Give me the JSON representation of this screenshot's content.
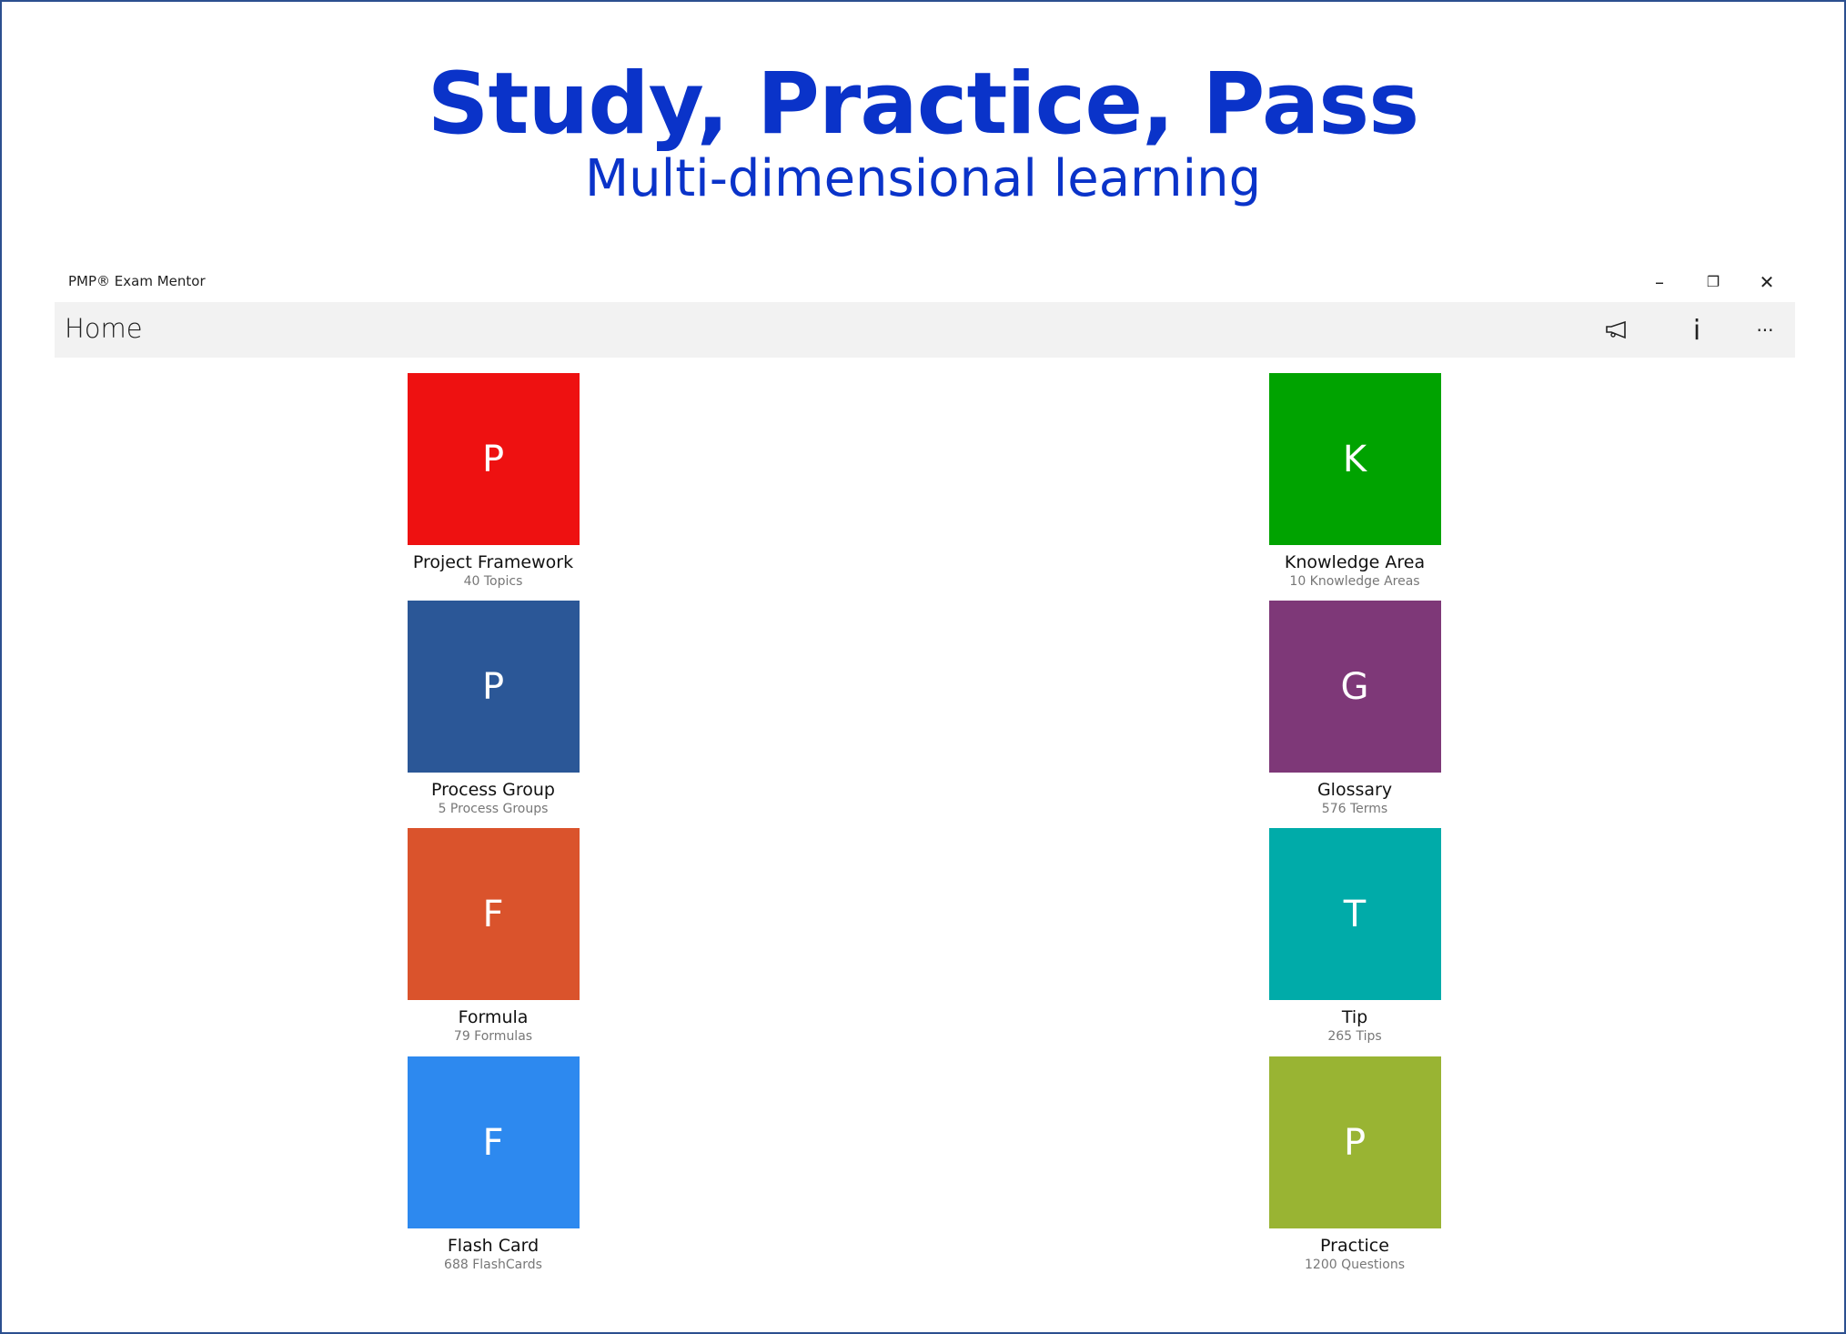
{
  "hero": {
    "title": "Study, Practice, Pass",
    "subtitle": "Multi-dimensional learning"
  },
  "window": {
    "title": "PMP® Exam Mentor",
    "minimize": "–",
    "restore": "❐",
    "close": "✕"
  },
  "header": {
    "title": "Home",
    "info": "i",
    "more": "···"
  },
  "tiles": [
    {
      "letter": "P",
      "title": "Project Framework",
      "subtitle": "40 Topics",
      "color": "#ee1111"
    },
    {
      "letter": "K",
      "title": "Knowledge Area",
      "subtitle": "10 Knowledge Areas",
      "color": "#00a300"
    },
    {
      "letter": "P",
      "title": "Process Group",
      "subtitle": "5 Process Groups",
      "color": "#2b5797"
    },
    {
      "letter": "G",
      "title": "Glossary",
      "subtitle": "576 Terms",
      "color": "#7e3878"
    },
    {
      "letter": "F",
      "title": "Formula",
      "subtitle": "79 Formulas",
      "color": "#da532c"
    },
    {
      "letter": "T",
      "title": "Tip",
      "subtitle": "265 Tips",
      "color": "#00aba9"
    },
    {
      "letter": "F",
      "title": "Flash Card",
      "subtitle": "688 FlashCards",
      "color": "#2d89ef"
    },
    {
      "letter": "P",
      "title": "Practice",
      "subtitle": "1200 Questions",
      "color": "#99b433"
    }
  ]
}
